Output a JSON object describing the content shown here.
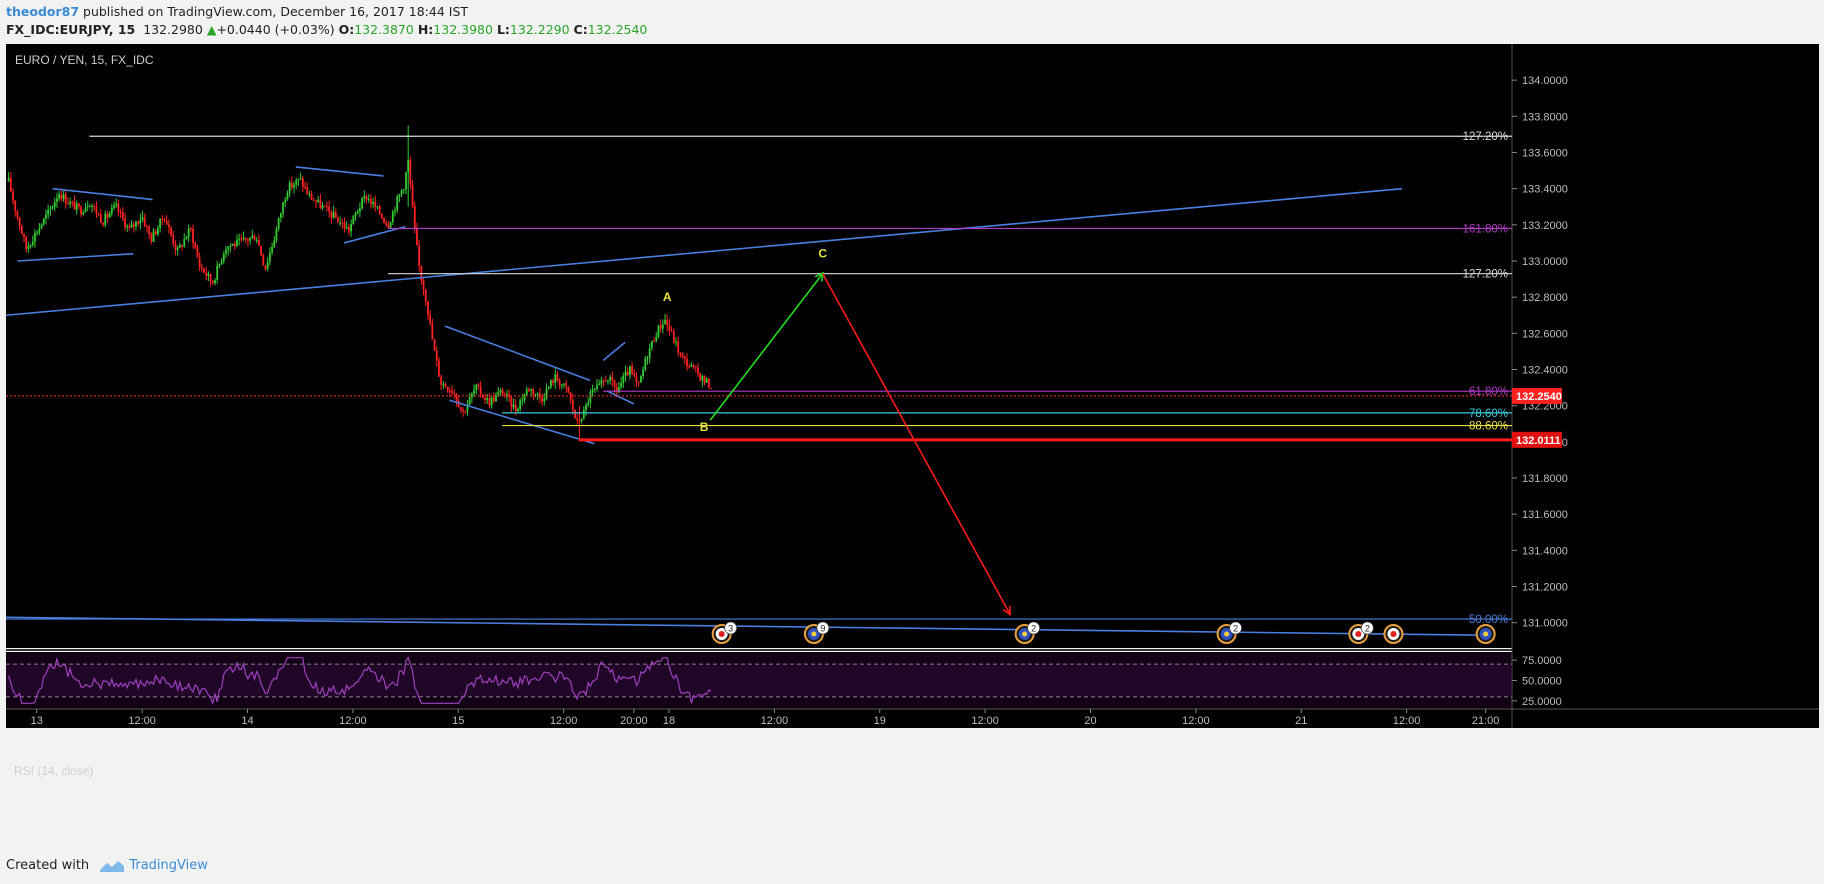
{
  "header": {
    "author": "theodor87",
    "published": " published on TradingView.com, December 16, 2017 18:44 IST",
    "symbol": "FX_IDC:EURJPY, 15",
    "last": "132.2980",
    "change": "+0.0440 (+0.03%)",
    "o_label": "O:",
    "o_value": "132.3870",
    "h_label": "H:",
    "h_value": "132.3980",
    "l_label": "L:",
    "l_value": "132.2290",
    "c_label": "C:",
    "c_value": "132.2540"
  },
  "footer": {
    "created_with": "Created with",
    "brand": "TradingView"
  },
  "colors": {
    "background": "#000000",
    "up": "#33cc33",
    "down": "#ff2222",
    "trend_line": "#4a7fe0",
    "fib_white": "#d8d8d8",
    "fib_magenta": "#b23cc8",
    "fib_cyan": "#3ec8d8",
    "fib_yellow": "#e8e040",
    "target_red": "#ff1a1a",
    "arrow_green": "#22dd22",
    "arrow_red": "#ff1a1a",
    "rsi": "#a040c0"
  },
  "chart_data": {
    "type": "candlestick",
    "title": "EURO / YEN, 15, FX_IDC",
    "ylim": [
      130.86,
      134.2
    ],
    "y_ticks": [
      "134.0000",
      "133.8000",
      "133.6000",
      "133.4000",
      "133.2000",
      "133.0000",
      "132.8000",
      "132.6000",
      "132.4000",
      "132.2000",
      "132.0000",
      "131.8000",
      "131.6000",
      "131.4000",
      "131.2000",
      "131.0000"
    ],
    "x_ticks": [
      {
        "label": "13",
        "t": 0.0
      },
      {
        "label": "12:00",
        "t": 12.0
      },
      {
        "label": "14",
        "t": 24.0
      },
      {
        "label": "12:00",
        "t": 36.0
      },
      {
        "label": "15",
        "t": 48.0
      },
      {
        "label": "12:00",
        "t": 60.0
      },
      {
        "label": "20:00",
        "t": 68.0
      },
      {
        "label": "18",
        "t": 72.0
      },
      {
        "label": "12:00",
        "t": 84.0
      },
      {
        "label": "19",
        "t": 96.0
      },
      {
        "label": "12:00",
        "t": 108.0
      },
      {
        "label": "20",
        "t": 120.0
      },
      {
        "label": "12:00",
        "t": 132.0
      },
      {
        "label": "21",
        "t": 144.0
      },
      {
        "label": "12:00",
        "t": 156.0
      },
      {
        "label": "21:00",
        "t": 165.0
      }
    ],
    "price_path": [
      [
        -3.2,
        133.44
      ],
      [
        -2.5,
        133.3
      ],
      [
        -1.2,
        133.07
      ],
      [
        0.2,
        133.18
      ],
      [
        1.5,
        133.28
      ],
      [
        2.5,
        133.38
      ],
      [
        3.5,
        133.33
      ],
      [
        5.0,
        133.28
      ],
      [
        6.0,
        133.33
      ],
      [
        7.5,
        133.22
      ],
      [
        9.0,
        133.3
      ],
      [
        10.5,
        133.17
      ],
      [
        12.0,
        133.25
      ],
      [
        13.0,
        133.12
      ],
      [
        14.5,
        133.25
      ],
      [
        16.0,
        133.05
      ],
      [
        17.5,
        133.18
      ],
      [
        18.5,
        132.98
      ],
      [
        20.0,
        132.88
      ],
      [
        21.5,
        133.08
      ],
      [
        23.0,
        133.1
      ],
      [
        25.0,
        133.14
      ],
      [
        26.0,
        132.96
      ],
      [
        27.0,
        133.12
      ],
      [
        28.5,
        133.4
      ],
      [
        30.0,
        133.45
      ],
      [
        31.0,
        133.36
      ],
      [
        32.5,
        133.3
      ],
      [
        34.0,
        133.24
      ],
      [
        35.5,
        133.17
      ],
      [
        36.5,
        133.28
      ],
      [
        37.5,
        133.36
      ],
      [
        38.5,
        133.3
      ],
      [
        40.0,
        133.2
      ],
      [
        41.0,
        133.33
      ],
      [
        41.8,
        133.42
      ],
      [
        42.3,
        133.55
      ],
      [
        43.0,
        133.18
      ],
      [
        43.6,
        132.95
      ],
      [
        44.3,
        132.8
      ],
      [
        45.2,
        132.52
      ],
      [
        46.0,
        132.33
      ],
      [
        47.5,
        132.28
      ],
      [
        48.5,
        132.16
      ],
      [
        50.0,
        132.3
      ],
      [
        51.5,
        132.22
      ],
      [
        53.0,
        132.28
      ],
      [
        54.5,
        132.18
      ],
      [
        56.0,
        132.3
      ],
      [
        57.5,
        132.24
      ],
      [
        59.0,
        132.36
      ],
      [
        60.5,
        132.28
      ],
      [
        61.5,
        132.1
      ],
      [
        62.3,
        132.16
      ],
      [
        63.0,
        132.26
      ],
      [
        64.0,
        132.3
      ],
      [
        65.0,
        132.36
      ],
      [
        66.0,
        132.28
      ],
      [
        67.5,
        132.4
      ],
      [
        68.5,
        132.3
      ],
      [
        69.5,
        132.48
      ],
      [
        70.5,
        132.6
      ],
      [
        71.5,
        132.68
      ],
      [
        72.5,
        132.57
      ],
      [
        73.5,
        132.46
      ],
      [
        74.8,
        132.4
      ],
      [
        76.0,
        132.34
      ],
      [
        77.0,
        132.3
      ]
    ],
    "price_noise": 0.05,
    "spikes": [
      {
        "t": 42.3,
        "high": 133.75,
        "low": 133.3
      },
      {
        "t": 61.7,
        "low": 132.01,
        "high": 132.2
      }
    ],
    "trend_lines": [
      {
        "from": [
          -3.5,
          132.7
        ],
        "to": [
          155.5,
          133.4
        ]
      },
      {
        "from": [
          -3.5,
          131.03
        ],
        "to": [
          166.0,
          130.93
        ]
      },
      {
        "from": [
          -2.2,
          133.0
        ],
        "to": [
          11.0,
          133.04
        ]
      },
      {
        "from": [
          1.8,
          133.4
        ],
        "to": [
          13.2,
          133.34
        ]
      },
      {
        "from": [
          29.5,
          133.52
        ],
        "to": [
          39.5,
          133.47
        ]
      },
      {
        "from": [
          35.0,
          133.1
        ],
        "to": [
          42.0,
          133.19
        ]
      },
      {
        "from": [
          46.5,
          132.64
        ],
        "to": [
          63.0,
          132.34
        ]
      },
      {
        "from": [
          47.0,
          132.23
        ],
        "to": [
          63.5,
          131.99
        ]
      },
      {
        "from": [
          64.5,
          132.45
        ],
        "to": [
          67.0,
          132.55
        ]
      },
      {
        "from": [
          65.0,
          132.28
        ],
        "to": [
          68.0,
          132.21
        ]
      }
    ],
    "fib_levels": [
      {
        "label": "127.20%",
        "price": 133.69,
        "from": 6.0,
        "color": "fib_white"
      },
      {
        "label": "161.80%",
        "price": 133.18,
        "from": 40.0,
        "color": "fib_magenta"
      },
      {
        "label": "127.20%",
        "price": 132.93,
        "from": 40.0,
        "color": "fib_white"
      },
      {
        "label": "61.80%",
        "price": 132.28,
        "from": 64.5,
        "color": "fib_magenta"
      },
      {
        "label": "78.60%",
        "price": 132.16,
        "from": 53.0,
        "color": "fib_cyan"
      },
      {
        "label": "88.60%",
        "price": 132.09,
        "from": 53.0,
        "color": "fib_yellow"
      },
      {
        "label": "50.00%",
        "price": 131.02,
        "from": -3.5,
        "color": "trend_line"
      }
    ],
    "current_price": {
      "label": "132.2540",
      "price": 132.254
    },
    "target_line": {
      "label": "132.0111",
      "price": 132.0111,
      "from": 61.7
    },
    "waves": [
      {
        "label": "A",
        "t": 71.8,
        "price": 132.78
      },
      {
        "label": "B",
        "t": 76.0,
        "price": 132.06
      },
      {
        "label": "C",
        "t": 89.5,
        "price": 133.02
      }
    ],
    "projection": {
      "green_from": [
        76.7,
        132.12
      ],
      "green_to": [
        89.5,
        132.93
      ],
      "red_from": [
        89.5,
        132.93
      ],
      "red_to": [
        110.8,
        131.05
      ]
    },
    "event_markers": [
      {
        "t": 78.0,
        "count": "3",
        "kind": "red"
      },
      {
        "t": 88.5,
        "count": "9",
        "kind": "blue"
      },
      {
        "t": 112.5,
        "count": "2",
        "kind": "blue"
      },
      {
        "t": 135.5,
        "count": "2",
        "kind": "blue"
      },
      {
        "t": 150.5,
        "count": "2",
        "kind": "red"
      },
      {
        "t": 154.5,
        "count": "",
        "kind": "red"
      },
      {
        "t": 165.0,
        "count": "",
        "kind": "blue"
      }
    ],
    "rsi": {
      "label": "RSI (14, close)",
      "ylim": [
        15,
        85
      ],
      "ticks": [
        "75.0000",
        "50.0000",
        "25.0000"
      ],
      "bands": [
        70,
        30
      ]
    }
  }
}
